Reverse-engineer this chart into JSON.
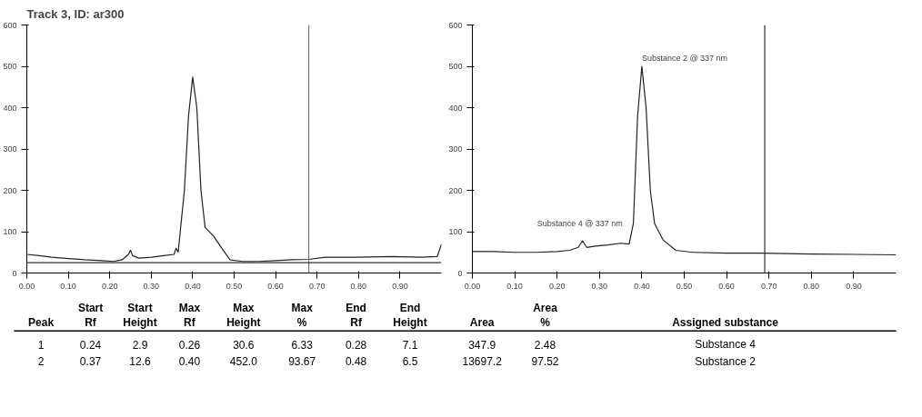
{
  "chart_data": [
    {
      "type": "line",
      "title": "Track 3, ID: ar300",
      "xlim": [
        0,
        1.0
      ],
      "ylim": [
        0,
        600
      ],
      "xticks": [
        {
          "value": 0,
          "label": "0.00"
        },
        {
          "value": 0.1,
          "label": "0.10"
        },
        {
          "value": 0.2,
          "label": "0.20"
        },
        {
          "value": 0.3,
          "label": "0.30"
        },
        {
          "value": 0.4,
          "label": "0.40"
        },
        {
          "value": 0.5,
          "label": "0.50"
        },
        {
          "value": 0.6,
          "label": "0.60"
        },
        {
          "value": 0.7,
          "label": "0.70"
        },
        {
          "value": 0.8,
          "label": "0.80"
        },
        {
          "value": 0.9,
          "label": "0.90"
        }
      ],
      "yticks": [
        0,
        100,
        200,
        300,
        400,
        500,
        600
      ],
      "grid": false,
      "series": [
        {
          "color": "#222222",
          "x": [
            0,
            0.03,
            0.06,
            0.1,
            0.14,
            0.18,
            0.21,
            0.23,
            0.245,
            0.25,
            0.255,
            0.27,
            0.3,
            0.33,
            0.355,
            0.36,
            0.365,
            0.38,
            0.39,
            0.4,
            0.41,
            0.42,
            0.43,
            0.45,
            0.47,
            0.49,
            0.52,
            0.56,
            0.6,
            0.64,
            0.68,
            0.72,
            0.8,
            0.88,
            0.95,
            0.99,
            1.0
          ],
          "values": [
            45,
            42,
            38,
            35,
            32,
            30,
            28,
            32,
            45,
            55,
            42,
            36,
            38,
            42,
            45,
            60,
            50,
            200,
            380,
            474,
            400,
            200,
            110,
            90,
            60,
            32,
            28,
            28,
            30,
            32,
            33,
            38,
            38,
            40,
            38,
            40,
            70
          ]
        }
      ],
      "ref_lines": [
        {
          "axis": "x",
          "value": 0.68,
          "color": "#777777"
        },
        {
          "axis": "y",
          "value": 25,
          "color": "#333333"
        }
      ]
    },
    {
      "type": "line",
      "xlim": [
        0,
        1.0
      ],
      "ylim": [
        0,
        600
      ],
      "xticks": [
        {
          "value": 0,
          "label": "0.00"
        },
        {
          "value": 0.1,
          "label": "0.10"
        },
        {
          "value": 0.2,
          "label": "0.20"
        },
        {
          "value": 0.3,
          "label": "0.30"
        },
        {
          "value": 0.4,
          "label": "0.40"
        },
        {
          "value": 0.5,
          "label": "0.50"
        },
        {
          "value": 0.6,
          "label": "0.60"
        },
        {
          "value": 0.7,
          "label": "0.70"
        },
        {
          "value": 0.8,
          "label": "0.80"
        },
        {
          "value": 0.9,
          "label": "0.90"
        }
      ],
      "yticks": [
        0,
        100,
        200,
        300,
        400,
        500,
        600
      ],
      "grid": false,
      "series": [
        {
          "color": "#222222",
          "x": [
            0,
            0.05,
            0.1,
            0.15,
            0.2,
            0.23,
            0.25,
            0.26,
            0.27,
            0.29,
            0.32,
            0.35,
            0.37,
            0.38,
            0.39,
            0.4,
            0.41,
            0.42,
            0.43,
            0.45,
            0.48,
            0.52,
            0.6,
            0.68,
            0.8,
            0.9,
            1.0
          ],
          "values": [
            52,
            52,
            50,
            50,
            52,
            55,
            62,
            78,
            62,
            65,
            68,
            72,
            70,
            120,
            380,
            500,
            400,
            200,
            120,
            80,
            55,
            50,
            48,
            48,
            46,
            45,
            44
          ]
        }
      ],
      "ref_lines": [
        {
          "axis": "x",
          "value": 0.69,
          "color": "#333333"
        }
      ],
      "annotations": [
        {
          "text": "Substance 2 @ 337 nm",
          "x": 0.4,
          "y": 500
        },
        {
          "text": "Substance 4 @ 337 nm",
          "x": 0.26,
          "y": 78
        }
      ]
    },
    {
      "type": "other",
      "categories": [
        "Peak",
        "Start\nRf",
        "Start\nHeight",
        "Max\nRf",
        "Max\nHeight",
        "Max\n%",
        "End\nRf",
        "End\nHeight",
        "Area",
        "Area\n%",
        "Assigned substance"
      ],
      "annotations": [
        "1",
        "0.24",
        "2.9",
        "0.26",
        "30.6",
        "6.33",
        "0.28",
        "7.1",
        "347.9",
        "2.48",
        "Substance 4",
        "2",
        "0.37",
        "12.6",
        "0.40",
        "452.0",
        "93.67",
        "0.48",
        "6.5",
        "13697.2",
        "97.52",
        "Substance 2"
      ]
    }
  ]
}
